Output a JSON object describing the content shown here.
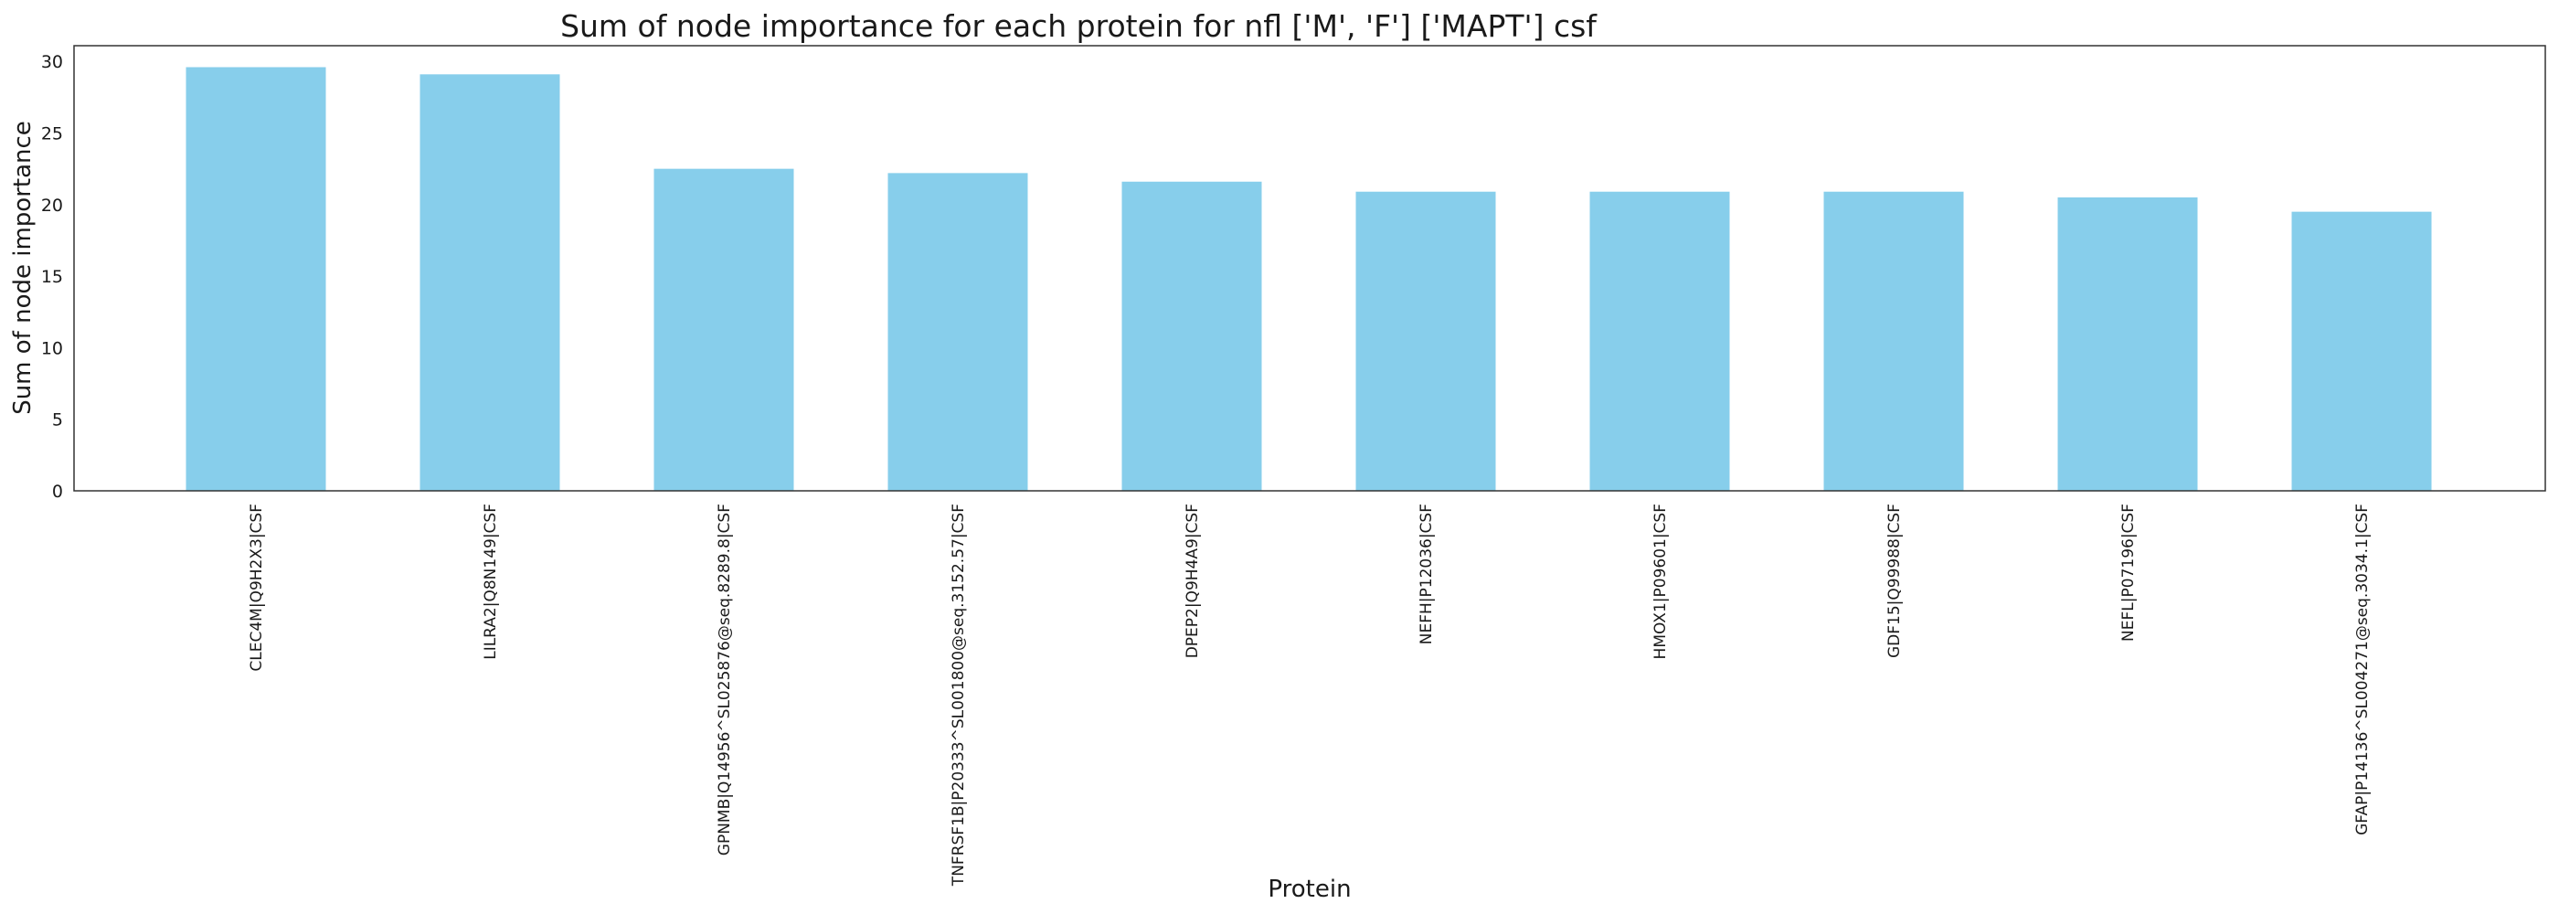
{
  "chart_data": {
    "type": "bar",
    "title": "Sum of node importance for each protein for nfl ['M', 'F'] ['MAPT'] csf",
    "xlabel": "Protein",
    "ylabel": "Sum of node importance",
    "categories": [
      "CLEC4M|Q9H2X3|CSF",
      "LILRA2|Q8N149|CSF",
      "GPNMB|Q14956^SL025876@seq.8289.8|CSF",
      "TNFRSF1B|P20333^SL001800@seq.3152.57|CSF",
      "DPEP2|Q9H4A9|CSF",
      "NEFH|P12036|CSF",
      "HMOX1|P09601|CSF",
      "GDF15|Q99988|CSF",
      "NEFL|P07196|CSF",
      "GFAP|P14136^SL004271@seq.3034.1|CSF"
    ],
    "values": [
      29.6,
      29.1,
      22.5,
      22.2,
      21.6,
      20.9,
      20.9,
      20.9,
      20.5,
      19.5
    ],
    "yticks": [
      "0",
      "5",
      "10",
      "15",
      "20",
      "25",
      "30"
    ],
    "ylim": [
      0,
      31.1
    ],
    "grid": false,
    "bar_color": "#87ceeb"
  }
}
